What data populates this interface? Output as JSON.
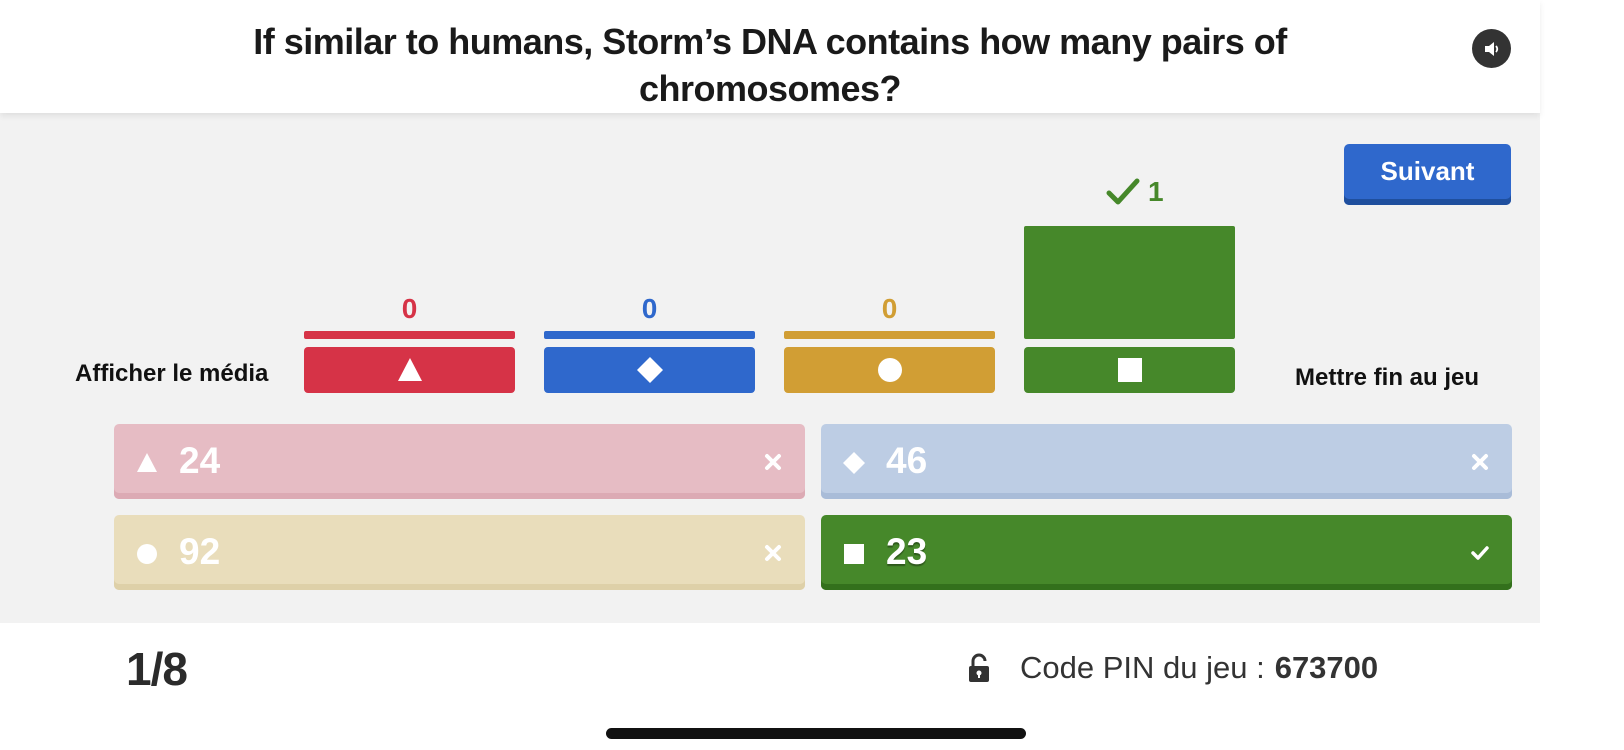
{
  "question": {
    "prefix": "If similar to humans, Storm’s DNA contains how many ",
    "emphasis": "pairs",
    "suffix": " of chromosomes?"
  },
  "header": {
    "sound_icon": "speaker-icon"
  },
  "controls": {
    "next_label": "Suivant",
    "show_media_label": "Afficher le média",
    "end_game_label": "Mettre fin au jeu"
  },
  "chart_data": {
    "type": "bar",
    "categories": [
      "triangle",
      "diamond",
      "circle",
      "square"
    ],
    "values": [
      0,
      0,
      0,
      1
    ],
    "colors": [
      "#d63347",
      "#2f68cc",
      "#d19e34",
      "#46882a"
    ],
    "correct_index": 3,
    "xlabel": "",
    "ylabel": "",
    "ylim": [
      0,
      1
    ]
  },
  "answers": [
    {
      "shape": "triangle",
      "text": "24",
      "correct": false,
      "color": "#e6bcc4"
    },
    {
      "shape": "diamond",
      "text": "46",
      "correct": false,
      "color": "#bdcde4"
    },
    {
      "shape": "circle",
      "text": "92",
      "correct": false,
      "color": "#e9ddbb"
    },
    {
      "shape": "square",
      "text": "23",
      "correct": true,
      "color": "#46882a"
    }
  ],
  "footer": {
    "progress": "1/8",
    "pin_label": "Code PIN du jeu :",
    "pin_value": "673700",
    "lock_icon": "unlocked-icon"
  }
}
